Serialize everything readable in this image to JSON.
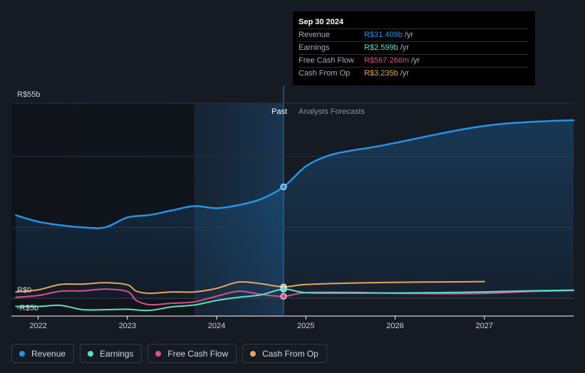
{
  "tooltip": {
    "date": "Sep 30 2024",
    "rows": [
      {
        "label": "Revenue",
        "value": "R$31.409b",
        "unit": "/yr",
        "color": "#2394e6"
      },
      {
        "label": "Earnings",
        "value": "R$2.599b",
        "unit": "/yr",
        "color": "#5ce0c4"
      },
      {
        "label": "Free Cash Flow",
        "value": "R$567.266m",
        "unit": "/yr",
        "color": "#d9508b"
      },
      {
        "label": "Cash From Op",
        "value": "R$3.235b",
        "unit": "/yr",
        "color": "#e7a55a"
      }
    ]
  },
  "legend": [
    {
      "label": "Revenue",
      "color": "#2394e6"
    },
    {
      "label": "Earnings",
      "color": "#5ce0c4"
    },
    {
      "label": "Free Cash Flow",
      "color": "#d9508b"
    },
    {
      "label": "Cash From Op",
      "color": "#e7a55a"
    }
  ],
  "chart_data": {
    "type": "line",
    "y_top_label": "R$55b",
    "y_zero_label": "R$0",
    "y_bottom_label": "-R$5b",
    "ylim": [
      -5,
      55
    ],
    "xlim": [
      2021.7,
      2028.0
    ],
    "x_tick_labels": [
      "2022",
      "2023",
      "2024",
      "2025",
      "2026",
      "2027"
    ],
    "x_ticks": [
      2022,
      2023,
      2024,
      2025,
      2026,
      2027
    ],
    "past_label": "Past",
    "forecast_label": "Analysts Forecasts",
    "divider_x": 2024.75,
    "highlight_start_x": 2023.75,
    "series": [
      {
        "name": "Revenue",
        "color": "#2394e6",
        "fill": true,
        "points": [
          [
            2021.75,
            23.4
          ],
          [
            2022.0,
            21.6
          ],
          [
            2022.25,
            20.6
          ],
          [
            2022.5,
            20.0
          ],
          [
            2022.75,
            20.0
          ],
          [
            2023.0,
            22.8
          ],
          [
            2023.25,
            23.5
          ],
          [
            2023.5,
            24.8
          ],
          [
            2023.75,
            26.0
          ],
          [
            2024.0,
            25.4
          ],
          [
            2024.25,
            26.3
          ],
          [
            2024.5,
            28.0
          ],
          [
            2024.75,
            31.409
          ],
          [
            2025.0,
            37.2
          ],
          [
            2025.25,
            40.2
          ],
          [
            2025.5,
            41.6
          ],
          [
            2025.75,
            42.6
          ],
          [
            2026.0,
            43.8
          ],
          [
            2026.25,
            45.1
          ],
          [
            2026.5,
            46.4
          ],
          [
            2026.75,
            47.6
          ],
          [
            2027.0,
            48.6
          ],
          [
            2027.25,
            49.3
          ],
          [
            2027.5,
            49.7
          ],
          [
            2027.75,
            50.0
          ],
          [
            2028.0,
            50.2
          ]
        ]
      },
      {
        "name": "Earnings",
        "color": "#5ce0c4",
        "fill": false,
        "points": [
          [
            2021.75,
            -2.3
          ],
          [
            2022.0,
            -2.3
          ],
          [
            2022.25,
            -2.0
          ],
          [
            2022.5,
            -3.2
          ],
          [
            2022.75,
            -3.2
          ],
          [
            2023.0,
            -3.1
          ],
          [
            2023.25,
            -3.4
          ],
          [
            2023.5,
            -2.4
          ],
          [
            2023.75,
            -1.9
          ],
          [
            2024.0,
            -0.6
          ],
          [
            2024.25,
            0.3
          ],
          [
            2024.5,
            1.0
          ],
          [
            2024.75,
            2.599
          ],
          [
            2025.0,
            1.6
          ],
          [
            2025.5,
            1.5
          ],
          [
            2026.0,
            1.5
          ],
          [
            2026.5,
            1.6
          ],
          [
            2027.0,
            1.8
          ],
          [
            2027.5,
            2.1
          ],
          [
            2028.0,
            2.3
          ]
        ]
      },
      {
        "name": "Free Cash Flow",
        "color": "#d9508b",
        "fill": false,
        "points": [
          [
            2021.75,
            0.3
          ],
          [
            2022.0,
            0.8
          ],
          [
            2022.25,
            2.0
          ],
          [
            2022.5,
            2.1
          ],
          [
            2022.75,
            2.6
          ],
          [
            2023.0,
            1.9
          ],
          [
            2023.1,
            -0.6
          ],
          [
            2023.25,
            -1.8
          ],
          [
            2023.5,
            -1.4
          ],
          [
            2023.75,
            -1.0
          ],
          [
            2024.0,
            0.6
          ],
          [
            2024.25,
            2.0
          ],
          [
            2024.5,
            1.1
          ],
          [
            2024.75,
            0.567
          ],
          [
            2025.0,
            1.6
          ],
          [
            2025.5,
            1.7
          ],
          [
            2026.0,
            1.4
          ],
          [
            2026.5,
            1.3
          ],
          [
            2027.0,
            1.4
          ],
          [
            2027.5,
            1.9
          ],
          [
            2028.0,
            2.2
          ]
        ]
      },
      {
        "name": "Cash From Op",
        "color": "#e7a55a",
        "fill": false,
        "points": [
          [
            2021.75,
            1.8
          ],
          [
            2022.0,
            2.4
          ],
          [
            2022.25,
            3.9
          ],
          [
            2022.5,
            4.0
          ],
          [
            2022.75,
            4.4
          ],
          [
            2023.0,
            3.8
          ],
          [
            2023.1,
            2.0
          ],
          [
            2023.25,
            1.4
          ],
          [
            2023.5,
            1.8
          ],
          [
            2023.75,
            1.8
          ],
          [
            2024.0,
            2.8
          ],
          [
            2024.25,
            4.6
          ],
          [
            2024.5,
            4.1
          ],
          [
            2024.75,
            3.235
          ],
          [
            2025.0,
            3.9
          ],
          [
            2025.5,
            4.3
          ],
          [
            2026.0,
            4.5
          ],
          [
            2026.5,
            4.6
          ],
          [
            2027.0,
            4.7
          ]
        ]
      }
    ]
  }
}
